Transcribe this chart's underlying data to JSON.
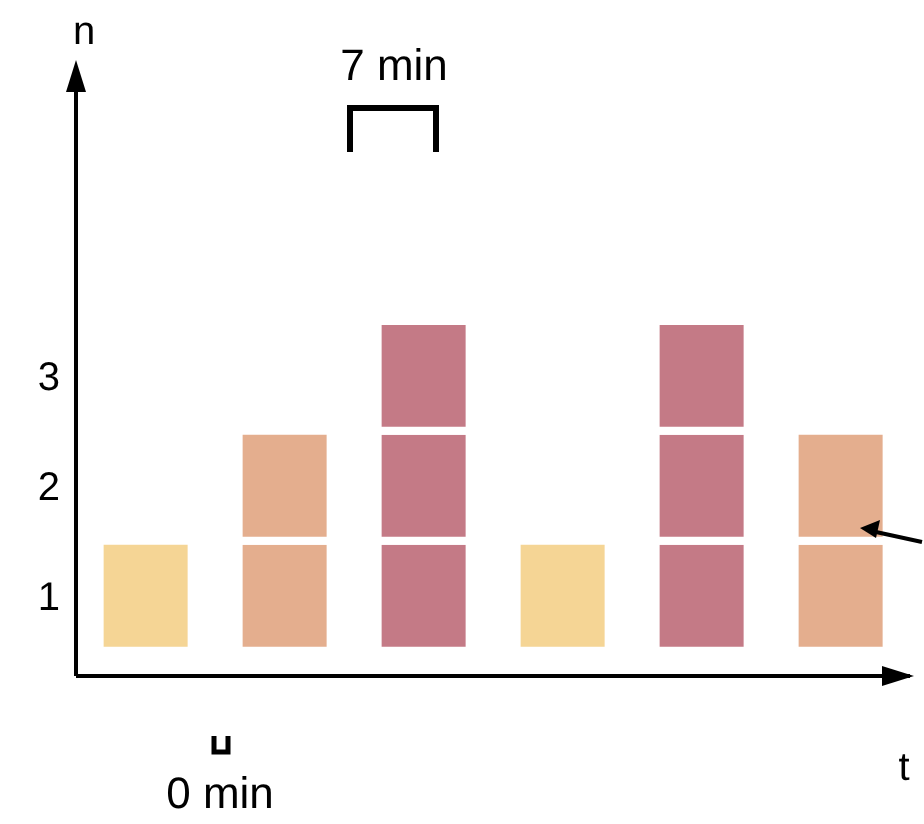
{
  "chart_data": {
    "type": "bar",
    "stacked": true,
    "xlabel": "t",
    "ylabel": "n",
    "categories": [
      null,
      null,
      null,
      null,
      null,
      null
    ],
    "series": [
      {
        "values": [
          1,
          1,
          1,
          1,
          1,
          1
        ],
        "colors": [
          "#f5d595",
          "#e4ae8e",
          "#c47a86",
          "#f5d595",
          "#c47a86",
          "#e4ae8e"
        ]
      },
      {
        "values": [
          null,
          1,
          1,
          null,
          1,
          1
        ],
        "colors": [
          null,
          "#e4ae8e",
          "#c47a86",
          null,
          "#c47a86",
          "#e4ae8e"
        ]
      },
      {
        "values": [
          null,
          null,
          1,
          null,
          1,
          null
        ],
        "colors": [
          null,
          null,
          "#c47a86",
          null,
          "#c47a86",
          null
        ]
      }
    ],
    "ylim": [
      -0.23,
      5.1
    ],
    "yticks": [
      {
        "value": 0.5,
        "label": "1"
      },
      {
        "value": 1.5,
        "label": "2"
      },
      {
        "value": 2.5,
        "label": "3"
      }
    ],
    "tick_labels": "y",
    "grid": false,
    "legend": false,
    "annotations": [
      "7 min",
      "0 min"
    ]
  }
}
